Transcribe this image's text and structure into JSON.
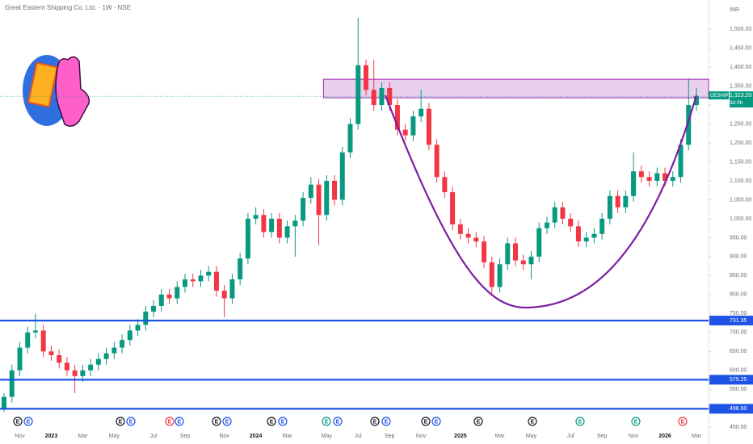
{
  "chart_data": {
    "type": "candlestick",
    "title": "Great Eastern Shipping Co. Ltd. · 1W · NSE",
    "currency": "INR",
    "ticker": "GESHIP",
    "countdown": "3d 0h",
    "event_label": "E",
    "categories": [
      null,
      null,
      "Nov",
      null,
      null,
      null,
      "2023",
      null,
      null,
      null,
      "Mar",
      null,
      null,
      null,
      "May",
      null,
      null,
      null,
      null,
      "Jul",
      null,
      null,
      null,
      "Sep",
      null,
      null,
      null,
      null,
      "Nov",
      null,
      null,
      null,
      "2024",
      null,
      null,
      null,
      "Mar",
      null,
      null,
      null,
      null,
      "May",
      null,
      null,
      null,
      "Jul",
      null,
      null,
      null,
      "Sep",
      null,
      null,
      null,
      "Nov",
      null,
      null,
      null,
      null,
      "2025",
      null,
      null,
      null,
      null,
      "Mar",
      null,
      null,
      null,
      "May",
      null,
      null,
      null,
      null,
      "Jul",
      null,
      null,
      null,
      "Sep",
      null,
      null,
      null,
      "Nov",
      null,
      null,
      null,
      "2026",
      null,
      null,
      null,
      "Mar"
    ],
    "open": [
      500,
      530,
      600,
      660,
      700,
      705,
      650,
      640,
      620,
      600,
      585,
      600,
      615,
      630,
      645,
      660,
      680,
      705,
      720,
      755,
      770,
      800,
      790,
      820,
      840,
      835,
      850,
      860,
      810,
      790,
      840,
      895,
      1000,
      1010,
      965,
      1000,
      950,
      980,
      995,
      1055,
      1090,
      1010,
      1100,
      1050,
      1175,
      1250,
      1405,
      1340,
      1300,
      1345,
      1300,
      1235,
      1220,
      1270,
      1290,
      1195,
      1110,
      1070,
      985,
      960,
      950,
      940,
      885,
      820,
      880,
      935,
      890,
      880,
      900,
      975,
      990,
      1030,
      1000,
      980,
      940,
      950,
      960,
      1000,
      1060,
      1030,
      1060,
      1125,
      1110,
      1100,
      1120,
      1100,
      1110,
      1195,
      1300
    ],
    "high": [
      540,
      615,
      675,
      715,
      750,
      720,
      665,
      655,
      635,
      615,
      615,
      630,
      645,
      660,
      675,
      695,
      720,
      735,
      770,
      785,
      815,
      815,
      835,
      855,
      855,
      865,
      875,
      875,
      825,
      855,
      910,
      1015,
      1030,
      1025,
      1015,
      1015,
      995,
      1010,
      1070,
      1110,
      1105,
      1115,
      1115,
      1190,
      1265,
      1530,
      1420,
      1420,
      1360,
      1360,
      1315,
      1250,
      1285,
      1340,
      1305,
      1210,
      1125,
      1085,
      1000,
      975,
      965,
      955,
      900,
      895,
      950,
      950,
      905,
      915,
      990,
      1005,
      1045,
      1045,
      1015,
      995,
      965,
      975,
      1015,
      1075,
      1075,
      1075,
      1175,
      1140,
      1125,
      1135,
      1135,
      1125,
      1210,
      1370,
      1345
    ],
    "low": [
      490,
      515,
      585,
      645,
      685,
      635,
      625,
      605,
      585,
      540,
      570,
      585,
      600,
      615,
      630,
      645,
      665,
      690,
      705,
      740,
      755,
      775,
      775,
      805,
      820,
      820,
      835,
      795,
      740,
      775,
      825,
      880,
      985,
      950,
      950,
      935,
      935,
      900,
      980,
      1040,
      930,
      995,
      1035,
      1035,
      1160,
      1235,
      1325,
      1285,
      1285,
      1285,
      1220,
      1205,
      1205,
      1255,
      1180,
      1095,
      1055,
      970,
      945,
      935,
      925,
      870,
      800,
      805,
      865,
      875,
      865,
      840,
      885,
      960,
      975,
      985,
      965,
      925,
      925,
      935,
      945,
      985,
      1015,
      1015,
      1045,
      1095,
      1085,
      1085,
      1085,
      1085,
      1095,
      1180,
      1285
    ],
    "close": [
      530,
      600,
      660,
      700,
      705,
      650,
      640,
      620,
      600,
      585,
      600,
      615,
      630,
      645,
      660,
      680,
      705,
      720,
      755,
      770,
      800,
      790,
      820,
      840,
      835,
      850,
      860,
      810,
      790,
      840,
      895,
      1000,
      1010,
      965,
      1000,
      950,
      980,
      995,
      1055,
      1090,
      1010,
      1100,
      1050,
      1175,
      1250,
      1405,
      1340,
      1300,
      1345,
      1300,
      1235,
      1220,
      1270,
      1290,
      1195,
      1110,
      1070,
      985,
      960,
      950,
      940,
      885,
      820,
      880,
      935,
      890,
      880,
      900,
      975,
      990,
      1030,
      1000,
      980,
      940,
      950,
      960,
      1000,
      1060,
      1030,
      1060,
      1125,
      1110,
      1100,
      1120,
      1100,
      1110,
      1195,
      1300,
      1323.2
    ],
    "up_color": "#089981",
    "down_color": "#f23645",
    "ylim": [
      1577,
      427
    ],
    "yticks": [
      {
        "value": 450,
        "label": "450.00"
      },
      {
        "value": 500,
        "label": "500.00"
      },
      {
        "value": 550,
        "label": "550.00"
      },
      {
        "value": 600,
        "label": "600.00"
      },
      {
        "value": 650,
        "label": "650.00"
      },
      {
        "value": 700,
        "label": "700.00"
      },
      {
        "value": 750,
        "label": "750.00"
      },
      {
        "value": 800,
        "label": "800.00"
      },
      {
        "value": 850,
        "label": "850.00"
      },
      {
        "value": 900,
        "label": "900.00"
      },
      {
        "value": 950,
        "label": "950.00"
      },
      {
        "value": 1000,
        "label": "1,000.00"
      },
      {
        "value": 1050,
        "label": "1,050.00"
      },
      {
        "value": 1100,
        "label": "1,100.00"
      },
      {
        "value": 1150,
        "label": "1,150.00"
      },
      {
        "value": 1200,
        "label": "1,200.00"
      },
      {
        "value": 1250,
        "label": "1,250.00"
      },
      {
        "value": 1300,
        "label": "1,300.00"
      },
      {
        "value": 1350,
        "label": "1,350.00"
      },
      {
        "value": 1400,
        "label": "1,400.00"
      },
      {
        "value": 1450,
        "label": "1,450.00"
      },
      {
        "value": 1500,
        "label": "1,500.00"
      }
    ],
    "grid": false,
    "levels": [
      731.35,
      575.25,
      {
        "value": 498.6,
        "label": "498.60"
      }
    ],
    "level_color": "#1e53e5",
    "zone": {
      "low": 1319,
      "high": 1368,
      "color": "#9c27b0"
    },
    "last_price": {
      "value": 1323.2,
      "label": "1,323.20"
    }
  }
}
